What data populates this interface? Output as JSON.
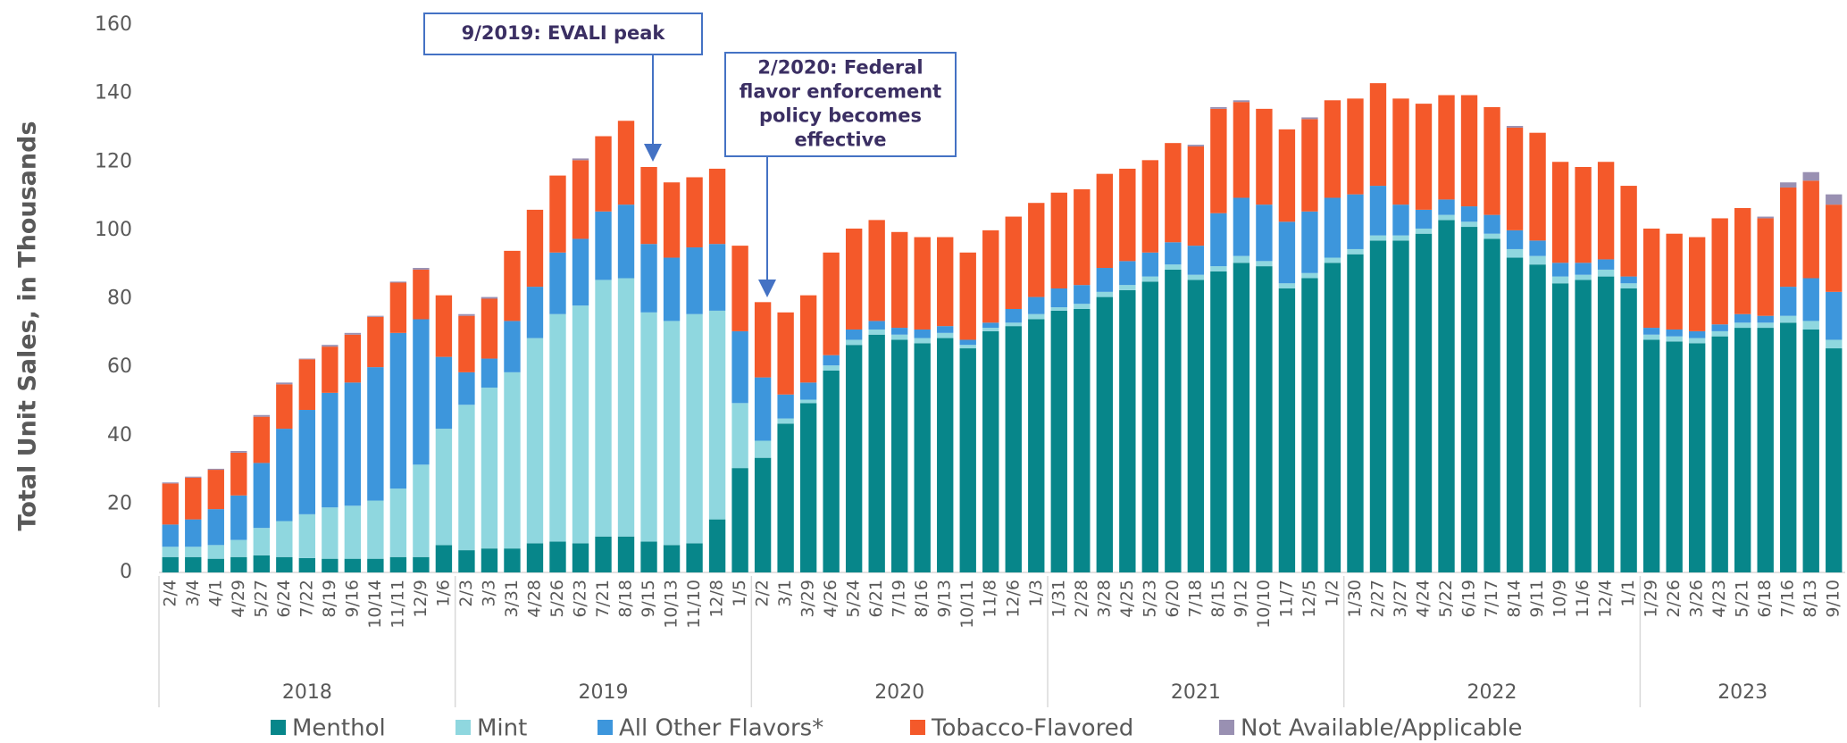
{
  "chart_data": {
    "type": "stacked_bar",
    "y_label": "Total Unit Sales, in Thousands",
    "categories": [
      "2/4",
      "3/4",
      "4/1",
      "4/29",
      "5/27",
      "6/24",
      "7/22",
      "8/19",
      "9/16",
      "10/14",
      "11/11",
      "12/9",
      "1/6",
      "2/3",
      "3/3",
      "3/31",
      "4/28",
      "5/26",
      "6/23",
      "7/21",
      "8/18",
      "9/15",
      "10/13",
      "11/10",
      "12/8",
      "1/5",
      "2/2",
      "3/1",
      "3/29",
      "4/26",
      "5/24",
      "6/21",
      "7/19",
      "8/16",
      "9/13",
      "10/11",
      "11/8",
      "12/6",
      "1/3",
      "1/31",
      "2/28",
      "3/28",
      "4/25",
      "5/23",
      "6/20",
      "7/18",
      "8/15",
      "9/12",
      "10/10",
      "11/7",
      "12/5",
      "1/2",
      "1/30",
      "2/27",
      "3/27",
      "4/24",
      "5/22",
      "6/19",
      "7/17",
      "8/14",
      "9/11",
      "10/9",
      "11/6",
      "12/4",
      "1/1",
      "1/29",
      "2/26",
      "3/26",
      "4/23",
      "5/21",
      "6/18",
      "7/16",
      "8/13",
      "9/10"
    ],
    "groups": [
      "2018",
      "2019",
      "2020",
      "2021",
      "2022",
      "2023"
    ],
    "series": [
      {
        "name": "Menthol",
        "color": "#07868a",
        "values": [
          4.5,
          4.5,
          4,
          4.5,
          5,
          4.5,
          4.2,
          4,
          4,
          4,
          4.5,
          4.5,
          8,
          6.5,
          7,
          7,
          8.5,
          9,
          8.5,
          10.5,
          10.5,
          9,
          8,
          8.5,
          15.5,
          30.5,
          33.5,
          43.5,
          49.5,
          59,
          66.5,
          69.5,
          68,
          67,
          68.5,
          65.5,
          70.5,
          72,
          74,
          76.5,
          77,
          80.5,
          82.5,
          85,
          88.5,
          85.5,
          88,
          90.5,
          89.5,
          83,
          86,
          90.5,
          93,
          97,
          97,
          99,
          103,
          101,
          97.5,
          92,
          90,
          84.5,
          85.5,
          86.5,
          83,
          68,
          67.5,
          67,
          69,
          71.5,
          71.5,
          73,
          71,
          65.5
        ]
      },
      {
        "name": "Mint",
        "color": "#8fd7df",
        "values": [
          3,
          3,
          4,
          5,
          8,
          10.5,
          12.8,
          15,
          15.5,
          17,
          20,
          27,
          34,
          42.5,
          47,
          51.5,
          60,
          66.5,
          69.5,
          75,
          75.5,
          67,
          65.5,
          67,
          61,
          19,
          5,
          1.5,
          1,
          1.5,
          1.5,
          1.5,
          1.5,
          1.5,
          1.5,
          1,
          1,
          1,
          1.5,
          1,
          1.5,
          1.5,
          1.5,
          1.5,
          1.5,
          1.5,
          1.5,
          2,
          1.5,
          1.5,
          1.5,
          1.5,
          1.5,
          1.5,
          1.5,
          1.5,
          1.5,
          1.5,
          1.5,
          2.5,
          2.5,
          2,
          1.5,
          2,
          1.5,
          1.5,
          1.5,
          1.5,
          1.5,
          1.5,
          1.5,
          2,
          2.5,
          2.5
        ]
      },
      {
        "name": "All Other Flavors*",
        "color": "#3d96dc",
        "values": [
          6.5,
          8,
          10.5,
          13,
          19,
          27,
          30.5,
          33.5,
          36,
          39,
          45.5,
          42.5,
          21,
          9.5,
          8.5,
          15,
          15,
          18,
          19.5,
          20,
          21.5,
          20,
          18.5,
          19.5,
          19.5,
          21,
          18.5,
          7,
          5,
          3,
          3,
          2.5,
          2,
          2.5,
          2,
          1.5,
          1.5,
          4,
          5,
          5.5,
          5.5,
          7,
          7,
          7,
          6.5,
          8.5,
          15.5,
          17,
          16.5,
          18,
          18,
          17.5,
          16,
          14.5,
          9,
          5.5,
          4.5,
          4.5,
          5.5,
          5.5,
          4.5,
          4,
          3.5,
          3,
          2,
          2,
          2,
          2,
          2,
          2.5,
          2,
          8.5,
          12.5,
          14
        ]
      },
      {
        "name": "Tobacco-Flavored",
        "color": "#f4592a",
        "values": [
          12,
          12.2,
          11.5,
          12.5,
          13.5,
          13,
          14.8,
          13.5,
          14,
          14.7,
          14.7,
          14.5,
          18,
          16.5,
          17.5,
          20.5,
          22.5,
          22.5,
          23,
          22,
          24.5,
          22.5,
          22,
          20.5,
          22,
          25,
          22,
          24,
          25.5,
          30,
          29.5,
          29.5,
          28,
          27,
          26,
          25.5,
          27,
          27,
          27.5,
          28,
          28,
          27.5,
          27,
          27,
          29,
          29,
          30.5,
          28,
          28,
          27,
          27,
          28.5,
          28,
          30,
          31,
          31,
          30.5,
          32.5,
          31.5,
          30,
          31.5,
          29.5,
          28,
          28.5,
          26.5,
          29,
          28,
          27.5,
          31,
          31,
          28.5,
          29,
          28.5,
          25.5
        ]
      },
      {
        "name": "Not Available/Applicable",
        "color": "#9990b2",
        "values": [
          0.3,
          0.3,
          0.3,
          0.5,
          0.5,
          0.5,
          0.2,
          0.5,
          0.5,
          0.3,
          0.3,
          0.5,
          0,
          0.5,
          0.5,
          0,
          0,
          0,
          0.5,
          0,
          0,
          0,
          0,
          0,
          0,
          0,
          0,
          0,
          0,
          0,
          0,
          0,
          0,
          0,
          0,
          0,
          0,
          0,
          0,
          0,
          0,
          0,
          0,
          0,
          0,
          0.5,
          0.5,
          0.5,
          0,
          0,
          0.5,
          0,
          0,
          0,
          0,
          0,
          0,
          0,
          0,
          0.5,
          0,
          0,
          0,
          0,
          0,
          0,
          0,
          0,
          0,
          0,
          0.5,
          1.5,
          2.5,
          3
        ]
      }
    ],
    "ylim": [
      0,
      160
    ],
    "yticks": [
      0,
      20,
      40,
      60,
      80,
      100,
      120,
      140,
      160
    ],
    "grid": false,
    "annotations": [
      {
        "lines": [
          "9/2019: EVALI peak"
        ]
      },
      {
        "lines": [
          "2/2020: Federal",
          "flavor enforcement",
          "policy becomes",
          "effective"
        ]
      }
    ]
  }
}
